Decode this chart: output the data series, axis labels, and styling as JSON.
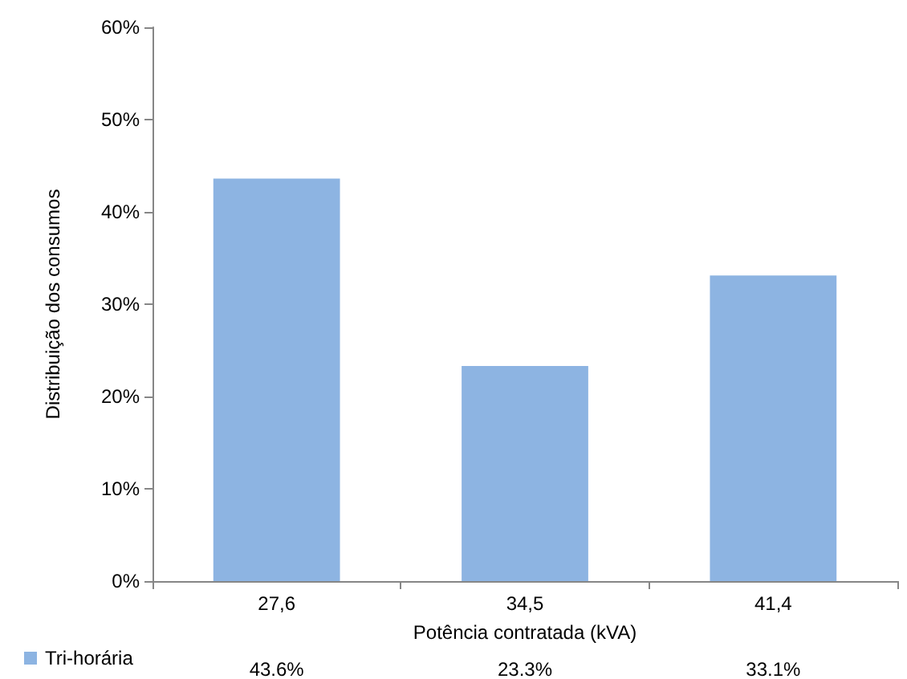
{
  "chart_data": {
    "type": "bar",
    "xlabel": "Potência contratada (kVA)",
    "ylabel": "Distribuição dos consumos",
    "categories": [
      "27,6",
      "34,5",
      "41,4"
    ],
    "series": [
      {
        "name": "Tri-horária",
        "color": "#8db4e2",
        "values": [
          43.6,
          23.3,
          33.1
        ],
        "value_labels": [
          "43.6%",
          "23.3%",
          "33.1%"
        ]
      }
    ],
    "ylim": [
      0,
      60
    ],
    "yticks": [
      {
        "value": 0,
        "label": "0%"
      },
      {
        "value": 10,
        "label": "10%"
      },
      {
        "value": 20,
        "label": "20%"
      },
      {
        "value": 30,
        "label": "30%"
      },
      {
        "value": 40,
        "label": "40%"
      },
      {
        "value": 50,
        "label": "50%"
      },
      {
        "value": 60,
        "label": "60%"
      }
    ],
    "grid": false,
    "legend": "bottom left"
  }
}
